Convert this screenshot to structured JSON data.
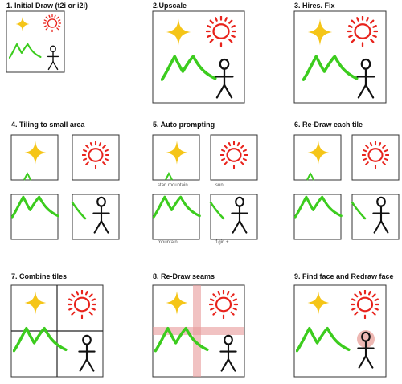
{
  "steps": [
    {
      "title": "1. Initial Draw (t2i or i2i)"
    },
    {
      "title": "2.Upscale"
    },
    {
      "title": "3. Hires. Fix"
    },
    {
      "title": "4. Tiling to small area"
    },
    {
      "title": "5. Auto prompting"
    },
    {
      "title": "6. Re-Draw each tile"
    },
    {
      "title": "7. Combine tiles"
    },
    {
      "title": "8. Re-Draw seams"
    },
    {
      "title": "9. Find face and Redraw face"
    }
  ],
  "tile_prompts": {
    "top_left": "star, mountain",
    "top_right": "sun",
    "bottom_left": "mountain",
    "bottom_right": "1girl +"
  },
  "colors": {
    "star": "#f5c518",
    "sun": "#e8231c",
    "mountain": "#3ccc1e",
    "figure": "#111111",
    "frame": "#333333",
    "seam_highlight": "#e89a9a",
    "face_highlight": "#e8a09a"
  },
  "icons": [
    "star-icon",
    "sun-icon",
    "mountain-icon",
    "stick-figure-icon"
  ]
}
